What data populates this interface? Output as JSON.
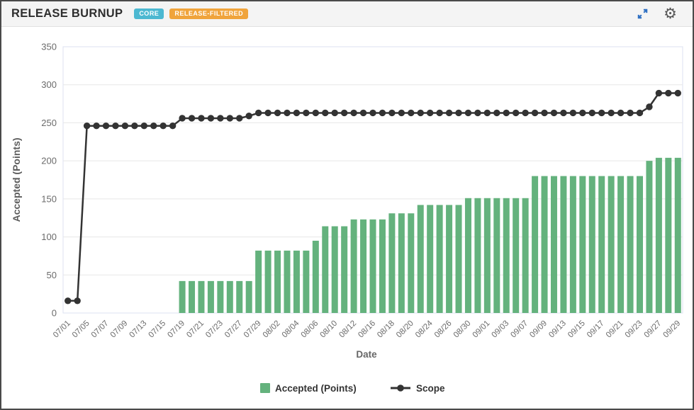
{
  "header": {
    "title": "RELEASE BURNUP",
    "badges": [
      {
        "label": "CORE",
        "color": "#4cb8d1"
      },
      {
        "label": "RELEASE-FILTERED",
        "color": "#f0a43c"
      }
    ],
    "icons": [
      {
        "name": "expand-icon",
        "color": "#2e6fc2"
      },
      {
        "name": "settings-gear-icon",
        "color": "#555555"
      }
    ]
  },
  "chart_data": {
    "type": "bar",
    "subtype": "bar+line combo (release burnup)",
    "x": [
      "07/01",
      "07/02",
      "07/05",
      "07/06",
      "07/07",
      "07/08",
      "07/09",
      "07/12",
      "07/13",
      "07/14",
      "07/15",
      "07/16",
      "07/19",
      "07/20",
      "07/21",
      "07/22",
      "07/23",
      "07/26",
      "07/27",
      "07/28",
      "07/29",
      "07/30",
      "08/02",
      "08/03",
      "08/04",
      "08/05",
      "08/06",
      "08/09",
      "08/10",
      "08/11",
      "08/12",
      "08/13",
      "08/16",
      "08/17",
      "08/18",
      "08/19",
      "08/20",
      "08/23",
      "08/24",
      "08/25",
      "08/26",
      "08/27",
      "08/30",
      "08/31",
      "09/01",
      "09/02",
      "09/03",
      "09/06",
      "09/07",
      "09/08",
      "09/09",
      "09/10",
      "09/13",
      "09/14",
      "09/15",
      "09/16",
      "09/17",
      "09/20",
      "09/21",
      "09/22",
      "09/23",
      "09/24",
      "09/27",
      "09/28",
      "09/29"
    ],
    "visible_x_tick_labels": [
      "07/01",
      "07/05",
      "07/07",
      "07/09",
      "07/13",
      "07/15",
      "07/19",
      "07/21",
      "07/23",
      "07/27",
      "07/29",
      "08/02",
      "08/04",
      "08/06",
      "08/10",
      "08/12",
      "08/16",
      "08/18",
      "08/20",
      "08/24",
      "08/26",
      "08/30",
      "09/01",
      "09/03",
      "09/07",
      "09/09",
      "09/13",
      "09/15",
      "09/17",
      "09/21",
      "09/23",
      "09/27",
      "09/29"
    ],
    "series": [
      {
        "name": "Accepted (Points)",
        "type": "bar",
        "color": "#64b27d",
        "values": [
          0,
          0,
          0,
          0,
          0,
          0,
          0,
          0,
          0,
          0,
          0,
          0,
          42,
          42,
          42,
          42,
          42,
          42,
          42,
          42,
          82,
          82,
          82,
          82,
          82,
          82,
          95,
          114,
          114,
          114,
          123,
          123,
          123,
          123,
          131,
          131,
          131,
          142,
          142,
          142,
          142,
          142,
          151,
          151,
          151,
          151,
          151,
          151,
          151,
          180,
          180,
          180,
          180,
          180,
          180,
          180,
          180,
          180,
          180,
          180,
          180,
          200,
          204,
          204,
          204
        ]
      },
      {
        "name": "Scope",
        "type": "line",
        "color": "#333333",
        "values": [
          16,
          16,
          246,
          246,
          246,
          246,
          246,
          246,
          246,
          246,
          246,
          246,
          256,
          256,
          256,
          256,
          256,
          256,
          256,
          259,
          263,
          263,
          263,
          263,
          263,
          263,
          263,
          263,
          263,
          263,
          263,
          263,
          263,
          263,
          263,
          263,
          263,
          263,
          263,
          263,
          263,
          263,
          263,
          263,
          263,
          263,
          263,
          263,
          263,
          263,
          263,
          263,
          263,
          263,
          263,
          263,
          263,
          263,
          263,
          263,
          263,
          271,
          289,
          289,
          289
        ]
      }
    ],
    "title": "",
    "xlabel": "Date",
    "ylabel": "Accepted (Points)",
    "ylim": [
      0,
      350
    ],
    "ytick_interval": 50,
    "y_ticks": [
      0,
      50,
      100,
      150,
      200,
      250,
      300,
      350
    ],
    "grid": true,
    "gridline_color": "#e7e7e7",
    "plot_border_color": "#dce2f1",
    "axis_text_color": "#6b6b6b",
    "legend_position": "bottom"
  },
  "legend": {
    "accepted_label": "Accepted (Points)",
    "scope_label": "Scope"
  }
}
